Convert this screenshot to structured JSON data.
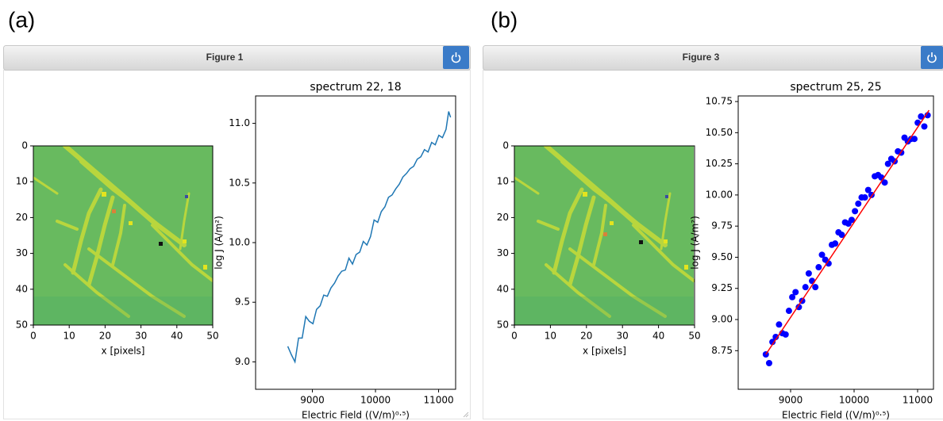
{
  "panels": [
    {
      "label": "(a)",
      "window_title": "Figure 1"
    },
    {
      "label": "(b)",
      "window_title": "Figure 3"
    }
  ],
  "chart_data": [
    {
      "type": "image",
      "xlabel": "x [pixels]",
      "xlim": [
        0,
        50
      ],
      "xticks": [
        0,
        10,
        20,
        30,
        40,
        50
      ],
      "ylim": [
        50,
        0
      ],
      "yticks": [
        0,
        10,
        20,
        30,
        40,
        50
      ]
    },
    {
      "type": "line",
      "title": "spectrum 22, 18",
      "xlabel": "Electric Field ((V/m)⁰·⁵)",
      "ylabel": "log J (A/m²)",
      "color": "#1f77b4",
      "x": [
        8610,
        8667,
        8724,
        8781,
        8838,
        8895,
        8952,
        9009,
        9066,
        9123,
        9180,
        9237,
        9294,
        9351,
        9408,
        9465,
        9522,
        9579,
        9636,
        9693,
        9750,
        9807,
        9864,
        9921,
        9978,
        10035,
        10092,
        10149,
        10206,
        10263,
        10320,
        10377,
        10434,
        10491,
        10548,
        10605,
        10662,
        10719,
        10776,
        10833,
        10890,
        10947,
        11004,
        11061,
        11118,
        11160,
        11190
      ],
      "values": [
        9.13,
        9.06,
        9.0,
        9.2,
        9.2,
        9.38,
        9.34,
        9.32,
        9.44,
        9.47,
        9.56,
        9.55,
        9.62,
        9.66,
        9.72,
        9.76,
        9.77,
        9.87,
        9.82,
        9.9,
        9.92,
        10.01,
        9.98,
        10.05,
        10.19,
        10.17,
        10.26,
        10.3,
        10.38,
        10.4,
        10.45,
        10.49,
        10.55,
        10.58,
        10.62,
        10.64,
        10.7,
        10.72,
        10.78,
        10.76,
        10.84,
        10.82,
        10.9,
        10.88,
        10.95,
        11.1,
        11.05
      ],
      "xlim": [
        8100,
        11270
      ],
      "xticks": [
        9000,
        10000,
        11000
      ],
      "ylim": [
        8.77,
        11.23
      ],
      "yticks": [
        {
          "value": 9,
          "label": "9.0"
        },
        9.5,
        {
          "value": 10,
          "label": "10.0"
        },
        10.5,
        {
          "value": 11,
          "label": "11.0"
        }
      ]
    },
    {
      "type": "image",
      "xlabel": "x [pixels]",
      "xlim": [
        0,
        50
      ],
      "xticks": [
        0,
        10,
        20,
        30,
        40,
        50
      ],
      "ylim": [
        50,
        0
      ],
      "yticks": [
        0,
        10,
        20,
        30,
        40,
        50
      ]
    },
    {
      "type": "scatter",
      "title": "spectrum 25, 25",
      "xlabel": "Electric Field ((V/m)⁰·⁵)",
      "ylabel": "log J (A/m²)",
      "series": [
        {
          "style": "markers",
          "color": "#0000ff",
          "x": [
            8610,
            8662,
            8714,
            8766,
            8818,
            8870,
            8922,
            8974,
            9026,
            9078,
            9130,
            9182,
            9234,
            9286,
            9338,
            9390,
            9442,
            9494,
            9546,
            9598,
            9650,
            9702,
            9754,
            9806,
            9858,
            9910,
            9962,
            10014,
            10066,
            10118,
            10170,
            10222,
            10274,
            10326,
            10378,
            10430,
            10482,
            10534,
            10586,
            10638,
            10690,
            10742,
            10794,
            10846,
            10898,
            10950,
            11002,
            11054,
            11106,
            11158
          ],
          "values": [
            8.72,
            8.65,
            8.82,
            8.86,
            8.96,
            8.89,
            8.88,
            9.07,
            9.18,
            9.22,
            9.1,
            9.15,
            9.26,
            9.37,
            9.31,
            9.26,
            9.42,
            9.52,
            9.48,
            9.45,
            9.6,
            9.61,
            9.7,
            9.68,
            9.78,
            9.77,
            9.8,
            9.87,
            9.93,
            9.98,
            9.98,
            10.04,
            10.0,
            10.15,
            10.16,
            10.14,
            10.1,
            10.25,
            10.29,
            10.27,
            10.35,
            10.34,
            10.46,
            10.43,
            10.45,
            10.45,
            10.58,
            10.63,
            10.55,
            10.64
          ]
        },
        {
          "style": "line",
          "color": "#ff0000",
          "x": [
            8610,
            11180
          ],
          "values": [
            8.72,
            10.68
          ]
        }
      ],
      "xlim": [
        8175,
        11250
      ],
      "xticks": [
        9000,
        10000,
        11000
      ],
      "ylim": [
        8.44,
        10.795
      ],
      "yticks": [
        8.75,
        {
          "value": 9,
          "label": "9.00"
        },
        9.25,
        {
          "value": 9.5,
          "label": "9.50"
        },
        9.75,
        {
          "value": 10,
          "label": "10.00"
        },
        10.25,
        {
          "value": 10.5,
          "label": "10.50"
        },
        10.75
      ]
    }
  ]
}
